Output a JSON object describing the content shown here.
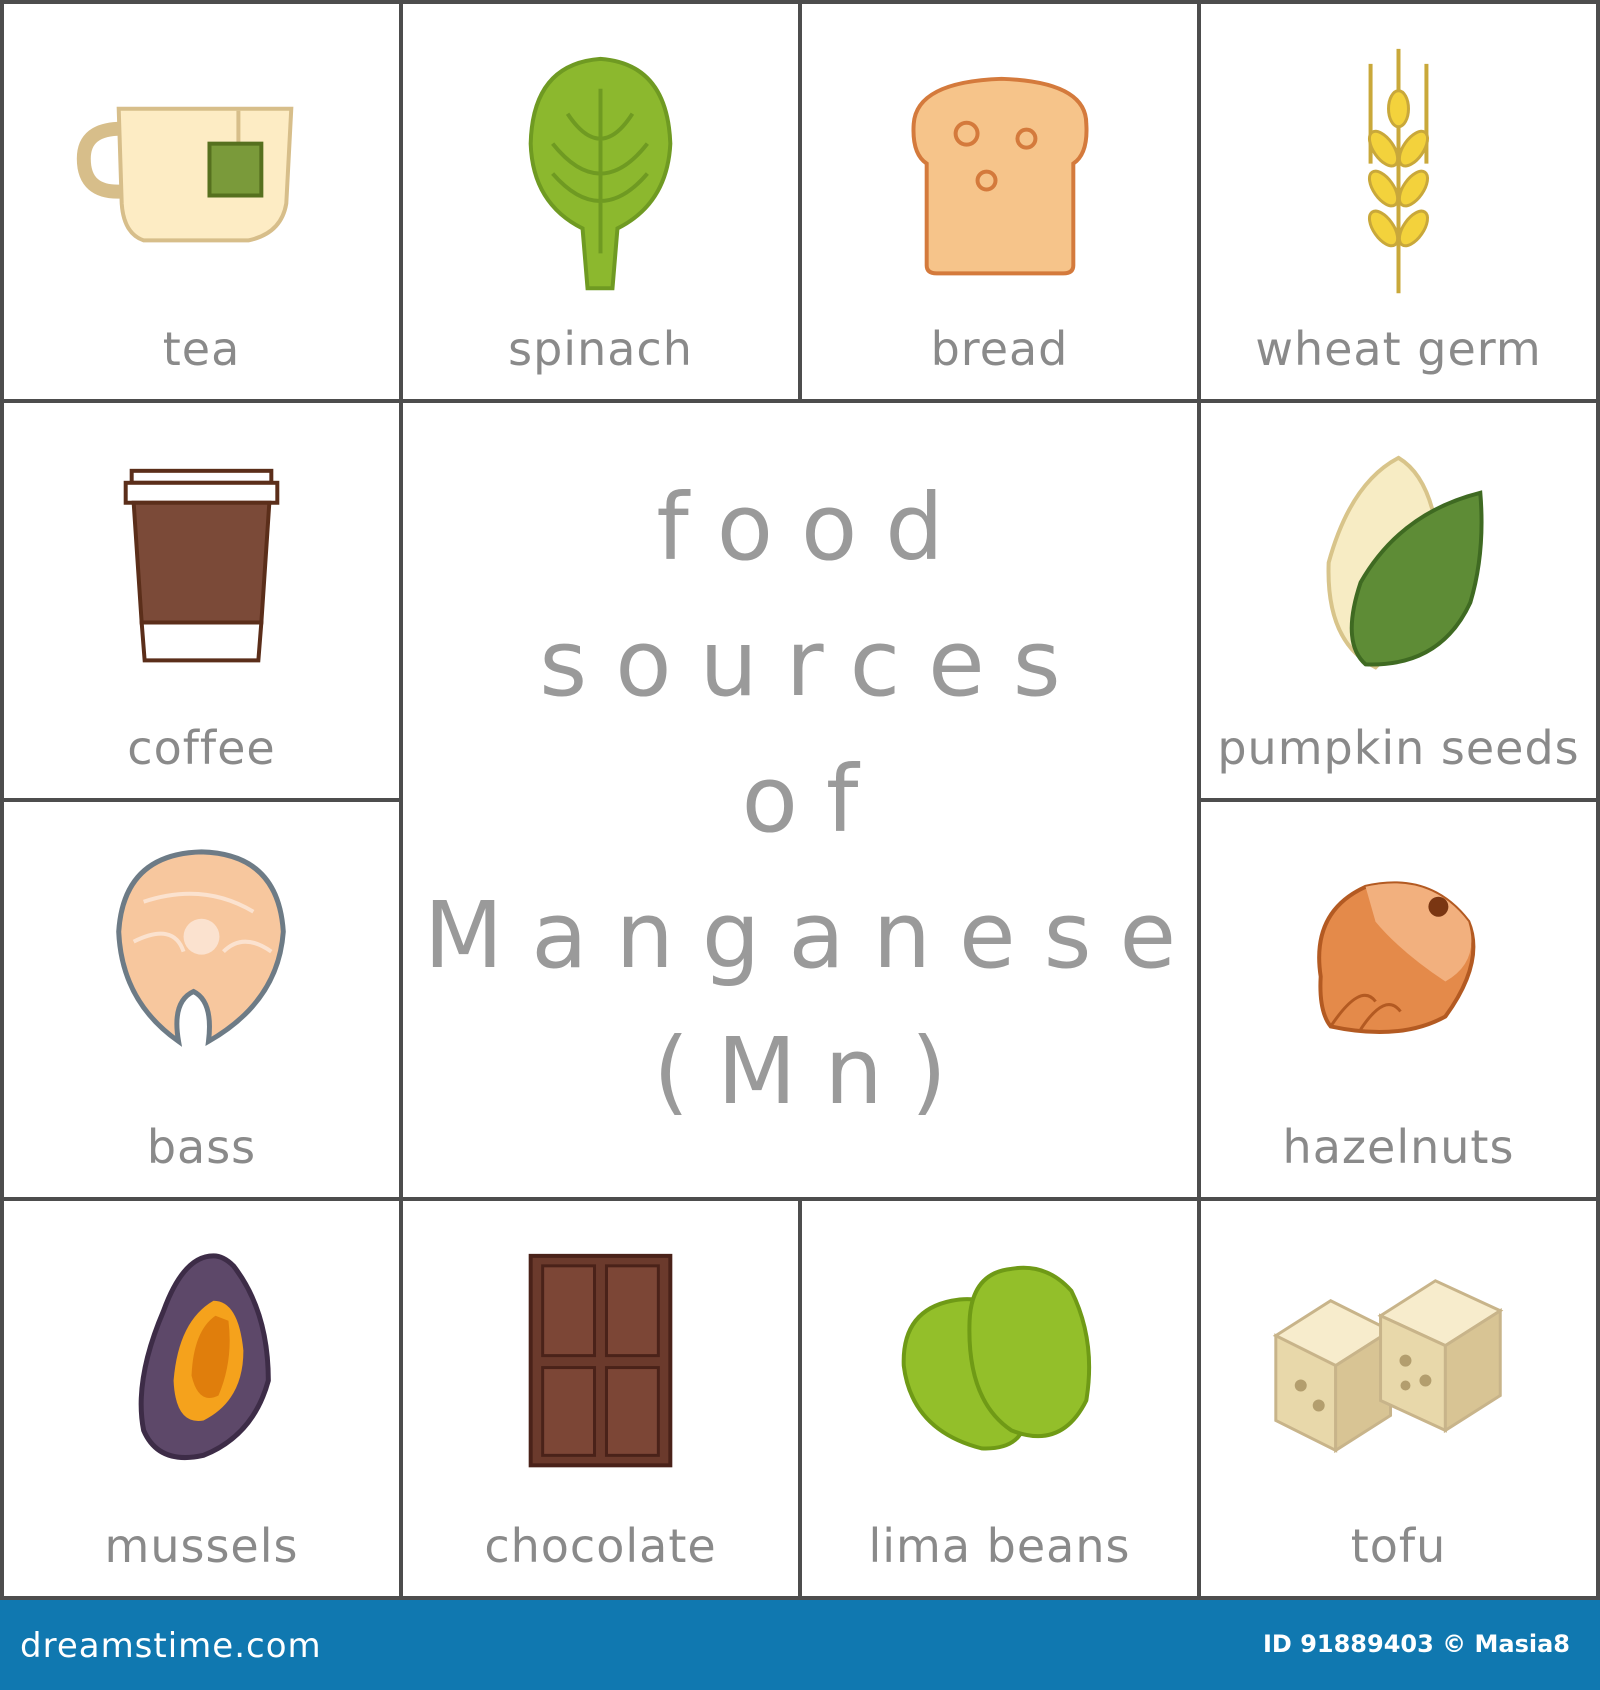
{
  "title": {
    "lines": [
      "food",
      "sources",
      "of",
      "Manganese",
      "(Mn)"
    ]
  },
  "foods": [
    {
      "label": "tea",
      "icon": "tea-cup-icon"
    },
    {
      "label": "spinach",
      "icon": "spinach-leaf-icon"
    },
    {
      "label": "bread",
      "icon": "bread-slice-icon"
    },
    {
      "label": "wheat germ",
      "icon": "wheat-icon"
    },
    {
      "label": "coffee",
      "icon": "coffee-cup-icon"
    },
    {
      "label": "pumpkin seeds",
      "icon": "pumpkin-seeds-icon"
    },
    {
      "label": "bass",
      "icon": "fish-steak-icon"
    },
    {
      "label": "hazelnuts",
      "icon": "hazelnut-icon"
    },
    {
      "label": "mussels",
      "icon": "mussel-icon"
    },
    {
      "label": "chocolate",
      "icon": "chocolate-bar-icon"
    },
    {
      "label": "lima beans",
      "icon": "lima-beans-icon"
    },
    {
      "label": "tofu",
      "icon": "tofu-icon"
    }
  ],
  "footer": {
    "logo": "dreamstime.com",
    "credit": "ID 91889403 © Masia8"
  },
  "colors": {
    "grid": "#4d4d4d",
    "label": "#8a8a8a",
    "footer": "#1078b0"
  }
}
